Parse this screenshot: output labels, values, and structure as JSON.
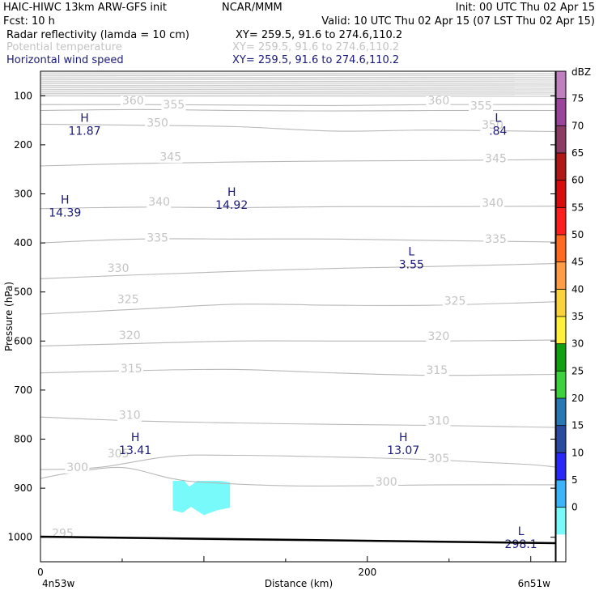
{
  "header": {
    "model": "HAIC-HIWC 13km ARW-GFS init",
    "org": "NCAR/MMM",
    "init": "Init: 00 UTC Thu 02 Apr 15",
    "fcst": "Fcst:    10 h",
    "valid": "Valid: 10 UTC Thu 02 Apr 15 (07 LST Thu 02 Apr 15)",
    "field1": "Radar reflectivity (lamda = 10 cm)",
    "xy1": "XY= 259.5, 91.6 to 274.6,110.2",
    "field2": "Potential temperature",
    "xy2": "XY= 259.5, 91.6 to 274.6,110.2",
    "field3": "Horizontal wind speed",
    "xy3": "XY= 259.5, 91.6 to 274.6,110.2",
    "color_field1": "#000000",
    "color_field2": "#c4c4c4",
    "color_field3": "#1a1a7a"
  },
  "axes": {
    "ylabel": "Pressure (hPa)",
    "xlabel": "Distance (km)",
    "left_endpoint": "4n53w",
    "right_endpoint": "6n51w"
  },
  "colorbar": {
    "unit": "dBZ",
    "labels": [
      "75",
      "70",
      "65",
      "60",
      "55",
      "50",
      "45",
      "40",
      "35",
      "30",
      "25",
      "20",
      "15",
      "10",
      "5",
      "0"
    ],
    "colors": [
      "#c080c0",
      "#9a449a",
      "#8c3c64",
      "#b01818",
      "#d80c0c",
      "#ff1e1e",
      "#ff6a1e",
      "#ff9c46",
      "#fad23c",
      "#fff03c",
      "#10a010",
      "#3cd23c",
      "#2878b4",
      "#2a4aa0",
      "#2828fa",
      "#3cb4fa",
      "#78fafa",
      "#ffffff"
    ]
  },
  "chart_data": {
    "type": "line",
    "title": "",
    "xlabel": "Distance (km)",
    "ylabel": "Pressure (hPa)",
    "xlim": [
      0,
      315
    ],
    "ylim": [
      1050,
      50
    ],
    "x_ticks": [
      "0",
      "200"
    ],
    "y_ticks": [
      "100",
      "200",
      "300",
      "400",
      "500",
      "600",
      "700",
      "800",
      "900",
      "1000"
    ],
    "series": [
      {
        "name": "295",
        "x": [
          0,
          60,
          120,
          200,
          250,
          315
        ],
        "y": [
          1000,
          1003,
          1006,
          1008,
          1010,
          1012
        ]
      },
      {
        "name": "300",
        "x": [
          0,
          20,
          50,
          80,
          100,
          150,
          200,
          220,
          250,
          315
        ],
        "y": [
          880,
          868,
          858,
          880,
          888,
          895,
          895,
          894,
          893,
          893
        ]
      },
      {
        "name": "305",
        "x": [
          0,
          35,
          80,
          120,
          160,
          200,
          240,
          270,
          300,
          315
        ],
        "y": [
          862,
          858,
          835,
          833,
          835,
          838,
          842,
          847,
          852,
          857
        ]
      },
      {
        "name": "310",
        "x": [
          0,
          60,
          120,
          180,
          240,
          315
        ],
        "y": [
          755,
          763,
          767,
          770,
          772,
          776
        ]
      },
      {
        "name": "315",
        "x": [
          0,
          60,
          120,
          180,
          240,
          315
        ],
        "y": [
          665,
          660,
          658,
          665,
          670,
          668
        ]
      },
      {
        "name": "320",
        "x": [
          0,
          60,
          120,
          180,
          240,
          315
        ],
        "y": [
          610,
          605,
          600,
          600,
          600,
          598
        ]
      },
      {
        "name": "325",
        "x": [
          0,
          60,
          120,
          180,
          240,
          315
        ],
        "y": [
          545,
          535,
          525,
          527,
          527,
          520
        ]
      },
      {
        "name": "330",
        "x": [
          0,
          60,
          120,
          180,
          240,
          315
        ],
        "y": [
          473,
          465,
          458,
          452,
          448,
          442
        ]
      },
      {
        "name": "335",
        "x": [
          0,
          60,
          120,
          180,
          240,
          315
        ],
        "y": [
          400,
          392,
          392,
          392,
          395,
          398
        ]
      },
      {
        "name": "340",
        "x": [
          0,
          60,
          120,
          180,
          240,
          315
        ],
        "y": [
          330,
          327,
          328,
          326,
          326,
          325
        ]
      },
      {
        "name": "345",
        "x": [
          0,
          60,
          120,
          180,
          240,
          315
        ],
        "y": [
          243,
          238,
          235,
          233,
          232,
          230
        ]
      },
      {
        "name": "350",
        "x": [
          0,
          60,
          120,
          180,
          240,
          315
        ],
        "y": [
          158,
          160,
          163,
          172,
          170,
          173
        ]
      },
      {
        "name": "355",
        "x": [
          0,
          60,
          120,
          180,
          240,
          315
        ],
        "y": [
          130,
          128,
          130,
          131,
          130,
          130
        ]
      },
      {
        "name": "360",
        "x": [
          0,
          60,
          120,
          180,
          240,
          315
        ],
        "y": [
          118,
          118,
          119,
          120,
          118,
          118
        ]
      }
    ],
    "contour_labels": [
      {
        "text": "360",
        "x": 50,
        "y": 118
      },
      {
        "text": "355",
        "x": 75,
        "y": 126
      },
      {
        "text": "350",
        "x": 65,
        "y": 163
      },
      {
        "text": "345",
        "x": 73,
        "y": 232
      },
      {
        "text": "340",
        "x": 66,
        "y": 324
      },
      {
        "text": "335",
        "x": 65,
        "y": 397
      },
      {
        "text": "330",
        "x": 41,
        "y": 459
      },
      {
        "text": "325",
        "x": 47,
        "y": 523
      },
      {
        "text": "320",
        "x": 48,
        "y": 596
      },
      {
        "text": "315",
        "x": 49,
        "y": 664
      },
      {
        "text": "310",
        "x": 48,
        "y": 759
      },
      {
        "text": "305",
        "x": 41,
        "y": 837
      },
      {
        "text": "300",
        "x": 16,
        "y": 865
      },
      {
        "text": "295",
        "x": 7,
        "y": 1000
      },
      {
        "text": "360",
        "x": 237,
        "y": 118
      },
      {
        "text": "355",
        "x": 263,
        "y": 128
      },
      {
        "text": "350",
        "x": 270,
        "y": 167
      },
      {
        "text": "345",
        "x": 272,
        "y": 236
      },
      {
        "text": "340",
        "x": 270,
        "y": 326
      },
      {
        "text": "335",
        "x": 272,
        "y": 400
      },
      {
        "text": "325",
        "x": 247,
        "y": 526
      },
      {
        "text": "320",
        "x": 237,
        "y": 598
      },
      {
        "text": "315",
        "x": 236,
        "y": 667
      },
      {
        "text": "310",
        "x": 237,
        "y": 770
      },
      {
        "text": "305",
        "x": 237,
        "y": 847
      },
      {
        "text": "300",
        "x": 205,
        "y": 895
      }
    ],
    "wind_extrema": [
      {
        "type": "H",
        "value": "11.87",
        "x": 27,
        "y": 168
      },
      {
        "type": "H",
        "value": "14.39",
        "x": 15,
        "y": 335
      },
      {
        "type": "H",
        "value": "14.92",
        "x": 117,
        "y": 319
      },
      {
        "type": "L",
        "value": "3.55",
        "x": 227,
        "y": 440
      },
      {
        "type": "L",
        "value": ".84",
        "x": 280,
        "y": 168
      },
      {
        "type": "H",
        "value": "13.41",
        "x": 58,
        "y": 819
      },
      {
        "type": "H",
        "value": "13.07",
        "x": 222,
        "y": 819
      },
      {
        "type": "L",
        "value": "298.1",
        "x": 294,
        "y": 1010
      }
    ],
    "reflectivity_patch": {
      "dbz_range": "5-10",
      "color": "#78fafa",
      "x": [
        81,
        88,
        91,
        96,
        110,
        116,
        116,
        108,
        100,
        92,
        87,
        81
      ],
      "y": [
        885,
        885,
        897,
        885,
        885,
        888,
        940,
        945,
        955,
        938,
        950,
        945
      ]
    }
  }
}
